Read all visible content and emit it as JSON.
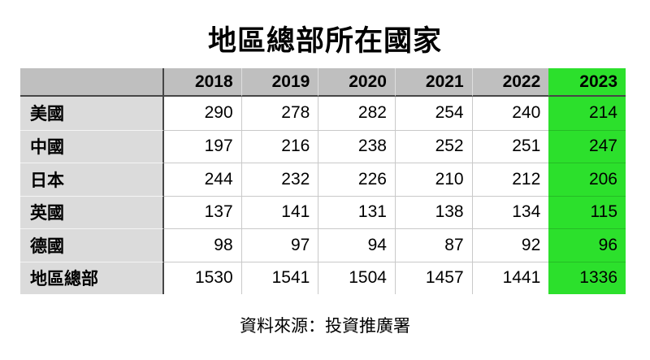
{
  "title": "地區總部所在國家",
  "source": "資料來源：投資推廣署",
  "colors": {
    "highlight_green": "#2CE02C",
    "header_gray": "#BFBFBF",
    "label_gray": "#DBDBDB"
  },
  "chart_data": {
    "type": "table",
    "columns": [
      "",
      "2018",
      "2019",
      "2020",
      "2021",
      "2022",
      "2023"
    ],
    "highlighted_column": "2023",
    "rows": [
      {
        "label": "美國",
        "values": [
          290,
          278,
          282,
          254,
          240,
          214
        ]
      },
      {
        "label": "中國",
        "values": [
          197,
          216,
          238,
          252,
          251,
          247
        ]
      },
      {
        "label": "日本",
        "values": [
          244,
          232,
          226,
          210,
          212,
          206
        ]
      },
      {
        "label": "英國",
        "values": [
          137,
          141,
          131,
          138,
          134,
          115
        ]
      },
      {
        "label": "德國",
        "values": [
          98,
          97,
          94,
          87,
          92,
          96
        ]
      },
      {
        "label": "地區總部",
        "values": [
          1530,
          1541,
          1504,
          1457,
          1441,
          1336
        ]
      }
    ]
  }
}
